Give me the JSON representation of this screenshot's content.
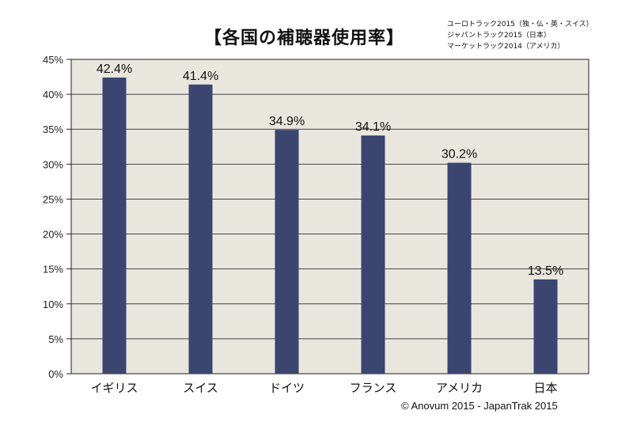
{
  "chart_data": {
    "type": "bar",
    "title": "【各国の補聴器使用率】",
    "sources": [
      "ユーロトラック2015（独・仏・英・スイス）",
      "ジャパントラック2015（日本）",
      "マーケットラック2014（アメリカ）"
    ],
    "categories": [
      "イギリス",
      "スイス",
      "ドイツ",
      "フランス",
      "アメリカ",
      "日本"
    ],
    "values": [
      42.4,
      41.4,
      34.9,
      34.1,
      30.2,
      13.5
    ],
    "value_labels": [
      "42.4%",
      "41.4%",
      "34.9%",
      "34.1%",
      "30.2%",
      "13.5%"
    ],
    "yticks": [
      0,
      5,
      10,
      15,
      20,
      25,
      30,
      35,
      40,
      45
    ],
    "ytick_labels": [
      "0%",
      "5%",
      "10%",
      "15%",
      "20%",
      "25%",
      "30%",
      "35%",
      "40%",
      "45%"
    ],
    "ylim": [
      0,
      45
    ],
    "xlabel": "",
    "ylabel": "",
    "grid": true,
    "colors": {
      "bar": "#3a4570",
      "plot_bg": "#e9e6de",
      "grid": "#444444"
    }
  },
  "copyright": "© Anovum 2015 - JapanTrak 2015"
}
